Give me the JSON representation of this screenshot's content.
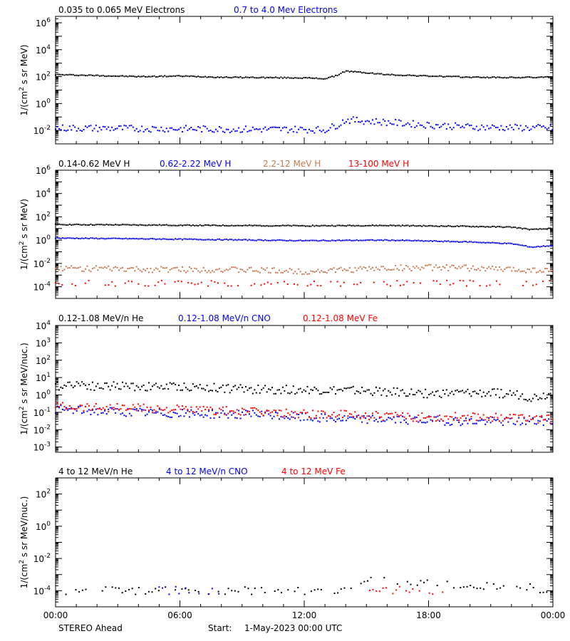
{
  "footer": {
    "spacecraft": "STEREO Ahead",
    "start_label": "Start:",
    "start_value": "1-May-2023 00:00 UTC",
    "x_ticks": [
      "00:00",
      "06:00",
      "12:00",
      "18:00",
      "00:00"
    ]
  },
  "chart_data": [
    {
      "type": "scatter",
      "panel": "electrons",
      "ylabel": "1/(cm² s sr MeV)",
      "yscale": "log",
      "ylim": [
        0.001,
        3000000
      ],
      "ytick_exponents": [
        -2,
        0,
        2,
        4,
        6
      ],
      "grid": false,
      "x_unit": "hours since 1-May-2023 00:00 UTC",
      "xlim": [
        0,
        24
      ],
      "series": [
        {
          "name": "0.035 to 0.065 MeV Electrons",
          "color": "#000000",
          "points": [
            [
              0,
              140
            ],
            [
              2,
              120
            ],
            [
              4,
              100
            ],
            [
              6,
              110
            ],
            [
              8,
              90
            ],
            [
              10,
              85
            ],
            [
              12,
              80
            ],
            [
              13,
              70
            ],
            [
              13.5,
              110
            ],
            [
              14,
              260
            ],
            [
              15,
              190
            ],
            [
              16,
              140
            ],
            [
              18,
              110
            ],
            [
              20,
              90
            ],
            [
              22,
              85
            ],
            [
              24,
              90
            ]
          ]
        },
        {
          "name": "0.7 to 4.0 Mev Electrons",
          "color": "#0000ff",
          "points": [
            [
              0,
              0.015
            ],
            [
              3,
              0.014
            ],
            [
              6,
              0.013
            ],
            [
              9,
              0.012
            ],
            [
              12,
              0.012
            ],
            [
              13,
              0.011
            ],
            [
              13.6,
              0.025
            ],
            [
              14,
              0.06
            ],
            [
              15,
              0.05
            ],
            [
              16,
              0.04
            ],
            [
              18,
              0.025
            ],
            [
              20,
              0.018
            ],
            [
              22,
              0.016
            ],
            [
              24,
              0.015
            ]
          ]
        }
      ]
    },
    {
      "type": "scatter",
      "panel": "protons",
      "ylabel": "1/(cm² s sr MeV)",
      "yscale": "log",
      "ylim": [
        1e-05,
        1000000
      ],
      "ytick_exponents": [
        -4,
        -2,
        0,
        2,
        4,
        6
      ],
      "grid": false,
      "x_unit": "hours since 1-May-2023 00:00 UTC",
      "xlim": [
        0,
        24
      ],
      "series": [
        {
          "name": "0.14-0.62 MeV H",
          "color": "#000000",
          "points": [
            [
              0,
              22
            ],
            [
              4,
              20
            ],
            [
              8,
              18
            ],
            [
              12,
              17
            ],
            [
              16,
              18
            ],
            [
              20,
              15
            ],
            [
              22,
              13
            ],
            [
              23,
              8
            ],
            [
              24,
              10
            ]
          ]
        },
        {
          "name": "0.62-2.22 MeV H",
          "color": "#0000ff",
          "points": [
            [
              0,
              1.5
            ],
            [
              4,
              1.3
            ],
            [
              8,
              1.1
            ],
            [
              12,
              0.9
            ],
            [
              16,
              1.0
            ],
            [
              20,
              0.7
            ],
            [
              22,
              0.5
            ],
            [
              23,
              0.25
            ],
            [
              24,
              0.35
            ]
          ]
        },
        {
          "name": "2.2-12 MeV H",
          "color": "#c87850",
          "points": [
            [
              0,
              0.004
            ],
            [
              4,
              0.003
            ],
            [
              8,
              0.003
            ],
            [
              10,
              0.0025
            ],
            [
              12,
              0.002
            ],
            [
              16,
              0.004
            ],
            [
              18,
              0.0045
            ],
            [
              20,
              0.004
            ],
            [
              22,
              0.003
            ],
            [
              24,
              0.0025
            ]
          ]
        },
        {
          "name": "13-100 MeV H",
          "color": "#ff0000",
          "points": [
            [
              0,
              0.0002
            ],
            [
              4,
              0.0002
            ],
            [
              8,
              0.0002
            ],
            [
              12,
              0.0002
            ],
            [
              16,
              0.0002
            ],
            [
              20,
              0.0002
            ],
            [
              24,
              0.0002
            ]
          ]
        }
      ]
    },
    {
      "type": "scatter",
      "panel": "heavy-ions-low",
      "ylabel": "1/(cm² s sr MeV/nuc.)",
      "yscale": "log",
      "ylim": [
        0.0005,
        10000
      ],
      "ytick_exponents": [
        -3,
        -2,
        -1,
        0,
        1,
        2,
        3,
        4
      ],
      "grid": false,
      "x_unit": "hours since 1-May-2023 00:00 UTC",
      "xlim": [
        0,
        24
      ],
      "series": [
        {
          "name": "0.12-1.08 MeV/n He",
          "color": "#000000",
          "points": [
            [
              0,
              3
            ],
            [
              1,
              5
            ],
            [
              2,
              3
            ],
            [
              3,
              3.5
            ],
            [
              4,
              3
            ],
            [
              6,
              3
            ],
            [
              8,
              2.5
            ],
            [
              10,
              2
            ],
            [
              12,
              2
            ],
            [
              14,
              1.8
            ],
            [
              16,
              1.5
            ],
            [
              18,
              1.2
            ],
            [
              20,
              1.3
            ],
            [
              22,
              1.2
            ],
            [
              23,
              0.7
            ],
            [
              24,
              1.2
            ]
          ]
        },
        {
          "name": "0.12-1.08 MeV/n CNO",
          "color": "#0000ff",
          "points": [
            [
              0,
              0.15
            ],
            [
              2,
              0.12
            ],
            [
              4,
              0.1
            ],
            [
              6,
              0.08
            ],
            [
              8,
              0.08
            ],
            [
              10,
              0.07
            ],
            [
              12,
              0.05
            ],
            [
              14,
              0.04
            ],
            [
              16,
              0.04
            ],
            [
              18,
              0.035
            ],
            [
              20,
              0.03
            ],
            [
              22,
              0.03
            ],
            [
              24,
              0.03
            ]
          ]
        },
        {
          "name": "0.12-1.08 MeV Fe",
          "color": "#ff0000",
          "points": [
            [
              0,
              0.25
            ],
            [
              2,
              0.2
            ],
            [
              4,
              0.18
            ],
            [
              6,
              0.15
            ],
            [
              8,
              0.12
            ],
            [
              10,
              0.1
            ],
            [
              12,
              0.08
            ],
            [
              14,
              0.07
            ],
            [
              16,
              0.06
            ],
            [
              18,
              0.05
            ],
            [
              20,
              0.06
            ],
            [
              22,
              0.05
            ],
            [
              24,
              0.04
            ]
          ]
        }
      ]
    },
    {
      "type": "scatter",
      "panel": "heavy-ions-high",
      "ylabel": "1/(cm² s sr MeV/nuc.)",
      "yscale": "log",
      "ylim": [
        1e-05,
        1000
      ],
      "ytick_exponents": [
        -4,
        -2,
        0,
        2
      ],
      "grid": false,
      "x_unit": "hours since 1-May-2023 00:00 UTC",
      "xlim": [
        0,
        24
      ],
      "series": [
        {
          "name": "4 to 12 MeV/n He",
          "color": "#000000",
          "points": [
            [
              0.5,
              0.0001
            ],
            [
              2,
              0.0001
            ],
            [
              4,
              0.0001
            ],
            [
              8,
              0.0001
            ],
            [
              12,
              0.0001
            ],
            [
              14,
              0.0001
            ],
            [
              15,
              0.0004
            ],
            [
              15.5,
              0.0008
            ],
            [
              16,
              0.0004
            ],
            [
              17,
              0.0003
            ],
            [
              18,
              0.0003
            ],
            [
              20,
              0.0002
            ],
            [
              22,
              0.0002
            ],
            [
              24,
              0.0001
            ]
          ]
        },
        {
          "name": "4 to 12 MeV/n CNO",
          "color": "#0000ff",
          "points": [
            [
              5,
              0.0001
            ],
            [
              8,
              0.0001
            ]
          ]
        },
        {
          "name": "4 to 12 MeV Fe",
          "color": "#ff0000",
          "points": [
            [
              15,
              0.0001
            ],
            [
              19,
              0.0001
            ]
          ]
        }
      ]
    }
  ]
}
